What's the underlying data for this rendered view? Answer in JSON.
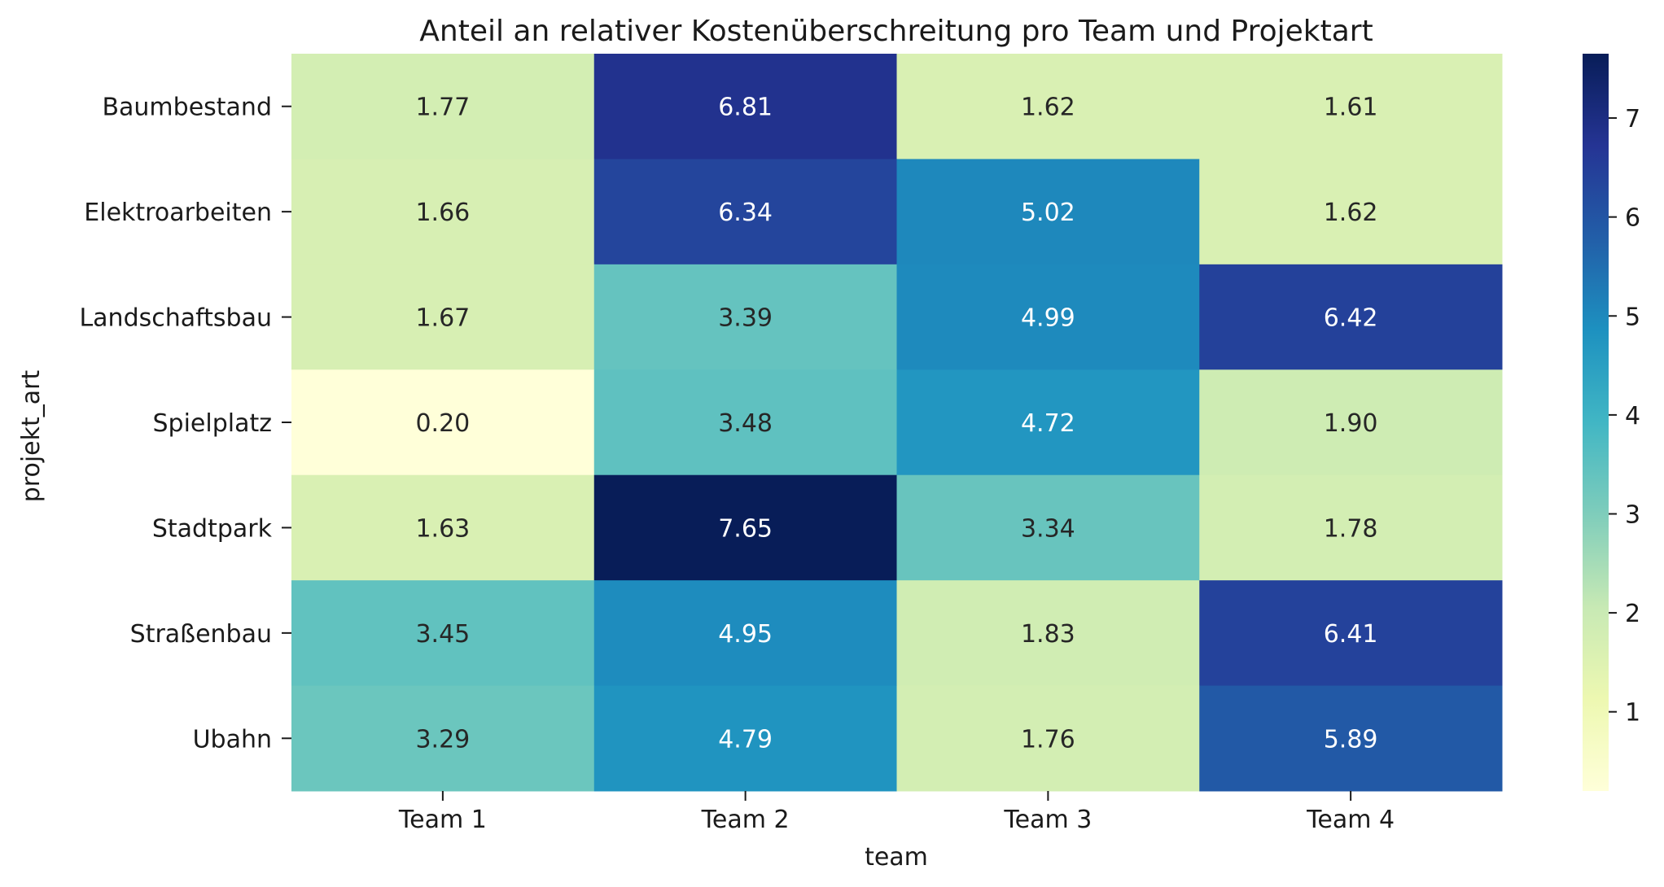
{
  "chart_data": {
    "type": "heatmap",
    "title": "Anteil an relativer Kostenüberschreitung pro Team und Projektart",
    "xlabel": "team",
    "ylabel": "projekt_art",
    "x_categories": [
      "Team 1",
      "Team 2",
      "Team 3",
      "Team 4"
    ],
    "y_categories": [
      "Baumbestand",
      "Elektroarbeiten",
      "Landschaftsbau",
      "Spielplatz",
      "Stadtpark",
      "Straßenbau",
      "Ubahn"
    ],
    "values": [
      [
        1.77,
        6.81,
        1.62,
        1.61
      ],
      [
        1.66,
        6.34,
        5.02,
        1.62
      ],
      [
        1.67,
        3.39,
        4.99,
        6.42
      ],
      [
        0.2,
        3.48,
        4.72,
        1.9
      ],
      [
        1.63,
        7.65,
        3.34,
        1.78
      ],
      [
        3.45,
        4.95,
        1.83,
        6.41
      ],
      [
        3.29,
        4.79,
        1.76,
        5.89
      ]
    ],
    "value_labels": [
      [
        "1.77",
        "6.81",
        "1.62",
        "1.61"
      ],
      [
        "1.66",
        "6.34",
        "5.02",
        "1.62"
      ],
      [
        "1.67",
        "3.39",
        "4.99",
        "6.42"
      ],
      [
        "0.20",
        "3.48",
        "4.72",
        "1.90"
      ],
      [
        "1.63",
        "7.65",
        "3.34",
        "1.78"
      ],
      [
        "3.45",
        "4.95",
        "1.83",
        "6.41"
      ],
      [
        "3.29",
        "4.79",
        "1.76",
        "5.89"
      ]
    ],
    "colormap": "YlGnBu",
    "colormap_stops": [
      "#ffffd9",
      "#edf8b1",
      "#c7e9b4",
      "#7fcdbb",
      "#41b6c4",
      "#1d91c0",
      "#225ea8",
      "#253494",
      "#081d58"
    ],
    "vmin": 0.2,
    "vmax": 7.65,
    "colorbar_ticks": [
      1,
      2,
      3,
      4,
      5,
      6,
      7
    ]
  }
}
